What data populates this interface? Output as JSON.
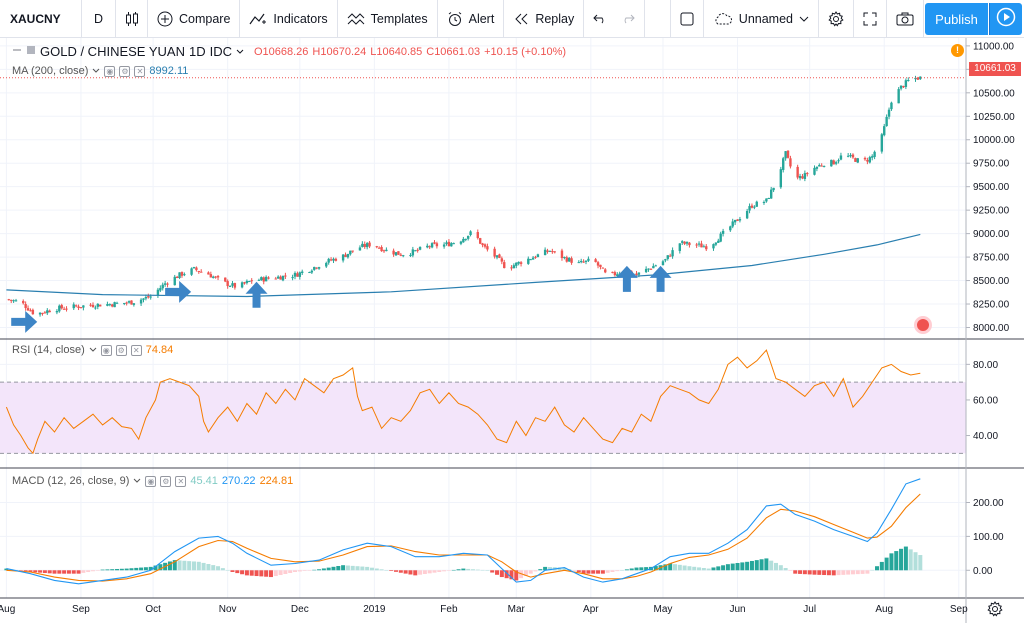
{
  "toolbar": {
    "symbol": "XAUCNY",
    "interval": "D",
    "compare_label": "Compare",
    "indicators_label": "Indicators",
    "templates_label": "Templates",
    "alert_label": "Alert",
    "replay_label": "Replay",
    "layout_name": "Unnamed",
    "publish_label": "Publish"
  },
  "main_legend": {
    "title": "GOLD / CHINESE YUAN",
    "interval": "1D",
    "source": "IDC",
    "open": "O10668.26",
    "high": "H10670.24",
    "low": "L10640.85",
    "close": "C10661.03",
    "change": "+10.15 (+0.10%)"
  },
  "ma_legend": {
    "label": "MA (200, close)",
    "value": "8992.11"
  },
  "rsi_legend": {
    "label": "RSI (14, close)",
    "value": "74.84"
  },
  "macd_legend": {
    "label": "MACD (12, 26, close, 9)",
    "hist": "45.41",
    "macd": "270.22",
    "signal": "224.81"
  },
  "price_badge": "10661.03",
  "colors": {
    "up": "#26a69a",
    "down": "#ef5350",
    "ma": "#2a7fb0",
    "rsi": "#f57c00",
    "rsi_band": "#f3e5fa",
    "macd": "#2196f3",
    "signal": "#f57c00",
    "accent": "#2196f3",
    "arrow": "#3d85c6"
  },
  "chart_data": [
    {
      "type": "candlestick",
      "title": "GOLD / CHINESE YUAN, 1D, IDC",
      "y_ticks": [
        8000,
        8250,
        8500,
        8750,
        9000,
        9250,
        9500,
        9750,
        10000,
        10250,
        10500,
        10750,
        11000
      ],
      "y_tick_labels": [
        "8000.00",
        "8250.00",
        "8500.00",
        "8750.00",
        "9000.00",
        "9250.00",
        "9500.00",
        "9750.00",
        "10000.00",
        "10250.00",
        "10500.00",
        "10750.00",
        "11000.00"
      ],
      "ylim": [
        7920,
        11020
      ],
      "x_tick_labels": [
        "Aug",
        "Sep",
        "Oct",
        "Nov",
        "Dec",
        "2019",
        "Feb",
        "Mar",
        "Apr",
        "May",
        "Jun",
        "Jul",
        "Aug",
        "Sep"
      ],
      "x_tick_days": [
        0,
        31,
        61,
        92,
        122,
        153,
        184,
        212,
        243,
        273,
        304,
        334,
        365,
        396
      ],
      "x_range_days": [
        -1,
        399
      ],
      "close_anchors": [
        [
          0,
          8300
        ],
        [
          6,
          8270
        ],
        [
          12,
          8140
        ],
        [
          20,
          8200
        ],
        [
          28,
          8220
        ],
        [
          36,
          8240
        ],
        [
          44,
          8250
        ],
        [
          52,
          8270
        ],
        [
          60,
          8330
        ],
        [
          66,
          8470
        ],
        [
          72,
          8560
        ],
        [
          78,
          8620
        ],
        [
          84,
          8570
        ],
        [
          90,
          8480
        ],
        [
          96,
          8430
        ],
        [
          102,
          8500
        ],
        [
          108,
          8520
        ],
        [
          114,
          8540
        ],
        [
          120,
          8560
        ],
        [
          126,
          8620
        ],
        [
          132,
          8690
        ],
        [
          140,
          8760
        ],
        [
          146,
          8850
        ],
        [
          152,
          8890
        ],
        [
          158,
          8820
        ],
        [
          164,
          8780
        ],
        [
          170,
          8810
        ],
        [
          176,
          8870
        ],
        [
          182,
          8880
        ],
        [
          188,
          8920
        ],
        [
          194,
          9020
        ],
        [
          198,
          8870
        ],
        [
          204,
          8740
        ],
        [
          208,
          8630
        ],
        [
          214,
          8700
        ],
        [
          220,
          8760
        ],
        [
          226,
          8820
        ],
        [
          232,
          8740
        ],
        [
          238,
          8680
        ],
        [
          244,
          8720
        ],
        [
          250,
          8540
        ],
        [
          256,
          8600
        ],
        [
          262,
          8560
        ],
        [
          268,
          8640
        ],
        [
          274,
          8720
        ],
        [
          280,
          8900
        ],
        [
          286,
          8880
        ],
        [
          292,
          8860
        ],
        [
          298,
          9000
        ],
        [
          304,
          9150
        ],
        [
          310,
          9300
        ],
        [
          316,
          9350
        ],
        [
          320,
          9550
        ],
        [
          324,
          9850
        ],
        [
          328,
          9580
        ],
        [
          332,
          9620
        ],
        [
          336,
          9700
        ],
        [
          340,
          9750
        ],
        [
          344,
          9760
        ],
        [
          348,
          9840
        ],
        [
          352,
          9800
        ],
        [
          356,
          9760
        ],
        [
          360,
          9820
        ],
        [
          364,
          10030
        ],
        [
          368,
          10420
        ],
        [
          372,
          10560
        ],
        [
          376,
          10650
        ],
        [
          380,
          10661
        ]
      ],
      "series": [
        {
          "name": "MA (200, close)",
          "points": [
            [
              0,
              8400
            ],
            [
              40,
              8350
            ],
            [
              100,
              8330
            ],
            [
              160,
              8380
            ],
            [
              220,
              8480
            ],
            [
              270,
              8560
            ],
            [
              310,
              8660
            ],
            [
              340,
              8780
            ],
            [
              362,
              8880
            ],
            [
              380,
              8992
            ]
          ]
        }
      ]
    },
    {
      "type": "line",
      "title": "RSI (14, close)",
      "y_ticks": [
        40,
        60,
        80
      ],
      "y_tick_labels": [
        "40.00",
        "60.00",
        "80.00"
      ],
      "ylim": [
        24,
        92
      ],
      "band": [
        30,
        70
      ],
      "points": [
        [
          0,
          56
        ],
        [
          3,
          46
        ],
        [
          6,
          40
        ],
        [
          9,
          33
        ],
        [
          11,
          30
        ],
        [
          13,
          38
        ],
        [
          16,
          48
        ],
        [
          20,
          42
        ],
        [
          24,
          50
        ],
        [
          28,
          44
        ],
        [
          32,
          48
        ],
        [
          36,
          52
        ],
        [
          40,
          46
        ],
        [
          44,
          50
        ],
        [
          48,
          45
        ],
        [
          52,
          44
        ],
        [
          55,
          38
        ],
        [
          58,
          50
        ],
        [
          62,
          60
        ],
        [
          64,
          70
        ],
        [
          68,
          72
        ],
        [
          72,
          70
        ],
        [
          76,
          68
        ],
        [
          80,
          62
        ],
        [
          82,
          48
        ],
        [
          84,
          42
        ],
        [
          88,
          50
        ],
        [
          92,
          56
        ],
        [
          96,
          48
        ],
        [
          100,
          58
        ],
        [
          104,
          52
        ],
        [
          108,
          64
        ],
        [
          112,
          58
        ],
        [
          116,
          66
        ],
        [
          120,
          60
        ],
        [
          124,
          72
        ],
        [
          128,
          68
        ],
        [
          132,
          64
        ],
        [
          136,
          72
        ],
        [
          140,
          74
        ],
        [
          144,
          78
        ],
        [
          146,
          62
        ],
        [
          148,
          54
        ],
        [
          152,
          56
        ],
        [
          156,
          44
        ],
        [
          160,
          50
        ],
        [
          164,
          48
        ],
        [
          168,
          54
        ],
        [
          172,
          64
        ],
        [
          176,
          66
        ],
        [
          180,
          58
        ],
        [
          184,
          64
        ],
        [
          188,
          58
        ],
        [
          192,
          56
        ],
        [
          196,
          52
        ],
        [
          200,
          46
        ],
        [
          204,
          38
        ],
        [
          208,
          36
        ],
        [
          212,
          48
        ],
        [
          216,
          40
        ],
        [
          220,
          50
        ],
        [
          224,
          48
        ],
        [
          228,
          56
        ],
        [
          232,
          46
        ],
        [
          236,
          42
        ],
        [
          240,
          50
        ],
        [
          244,
          44
        ],
        [
          248,
          38
        ],
        [
          252,
          36
        ],
        [
          256,
          44
        ],
        [
          260,
          42
        ],
        [
          264,
          52
        ],
        [
          268,
          48
        ],
        [
          272,
          62
        ],
        [
          276,
          68
        ],
        [
          280,
          66
        ],
        [
          284,
          64
        ],
        [
          288,
          60
        ],
        [
          292,
          58
        ],
        [
          296,
          66
        ],
        [
          300,
          80
        ],
        [
          304,
          84
        ],
        [
          308,
          78
        ],
        [
          312,
          82
        ],
        [
          316,
          88
        ],
        [
          320,
          72
        ],
        [
          324,
          70
        ],
        [
          328,
          66
        ],
        [
          332,
          62
        ],
        [
          336,
          68
        ],
        [
          340,
          70
        ],
        [
          344,
          62
        ],
        [
          348,
          72
        ],
        [
          352,
          56
        ],
        [
          356,
          62
        ],
        [
          360,
          70
        ],
        [
          364,
          78
        ],
        [
          368,
          80
        ],
        [
          372,
          76
        ],
        [
          376,
          74
        ],
        [
          380,
          75
        ]
      ]
    },
    {
      "type": "line",
      "title": "MACD (12, 26, close, 9)",
      "y_ticks": [
        0,
        100,
        200
      ],
      "y_tick_labels": [
        "0.00",
        "100.00",
        "200.00"
      ],
      "ylim": [
        -70,
        290
      ],
      "series": [
        {
          "name": "MACD",
          "points": [
            [
              0,
              5
            ],
            [
              10,
              -10
            ],
            [
              20,
              -30
            ],
            [
              30,
              -40
            ],
            [
              40,
              -30
            ],
            [
              50,
              -20
            ],
            [
              60,
              0
            ],
            [
              70,
              55
            ],
            [
              80,
              95
            ],
            [
              88,
              100
            ],
            [
              94,
              80
            ],
            [
              100,
              50
            ],
            [
              110,
              15
            ],
            [
              120,
              20
            ],
            [
              130,
              30
            ],
            [
              140,
              60
            ],
            [
              150,
              80
            ],
            [
              160,
              70
            ],
            [
              170,
              40
            ],
            [
              180,
              40
            ],
            [
              190,
              50
            ],
            [
              200,
              45
            ],
            [
              206,
              5
            ],
            [
              212,
              -35
            ],
            [
              218,
              -30
            ],
            [
              224,
              0
            ],
            [
              232,
              8
            ],
            [
              240,
              -20
            ],
            [
              248,
              -35
            ],
            [
              256,
              -25
            ],
            [
              262,
              -10
            ],
            [
              268,
              5
            ],
            [
              276,
              40
            ],
            [
              284,
              50
            ],
            [
              292,
              50
            ],
            [
              300,
              80
            ],
            [
              308,
              120
            ],
            [
              316,
              190
            ],
            [
              322,
              195
            ],
            [
              328,
              165
            ],
            [
              336,
              145
            ],
            [
              344,
              120
            ],
            [
              352,
              100
            ],
            [
              358,
              85
            ],
            [
              362,
              110
            ],
            [
              368,
              180
            ],
            [
              374,
              255
            ],
            [
              380,
              270
            ]
          ]
        },
        {
          "name": "Signal",
          "points": [
            [
              0,
              0
            ],
            [
              10,
              -5
            ],
            [
              20,
              -20
            ],
            [
              30,
              -30
            ],
            [
              40,
              -32
            ],
            [
              50,
              -25
            ],
            [
              60,
              -10
            ],
            [
              70,
              25
            ],
            [
              80,
              70
            ],
            [
              88,
              88
            ],
            [
              94,
              85
            ],
            [
              100,
              65
            ],
            [
              110,
              35
            ],
            [
              120,
              25
            ],
            [
              130,
              27
            ],
            [
              140,
              45
            ],
            [
              150,
              70
            ],
            [
              160,
              72
            ],
            [
              170,
              55
            ],
            [
              180,
              45
            ],
            [
              190,
              45
            ],
            [
              200,
              45
            ],
            [
              206,
              25
            ],
            [
              212,
              -5
            ],
            [
              218,
              -20
            ],
            [
              224,
              -10
            ],
            [
              232,
              0
            ],
            [
              240,
              -10
            ],
            [
              248,
              -25
            ],
            [
              256,
              -25
            ],
            [
              262,
              -18
            ],
            [
              268,
              -5
            ],
            [
              276,
              20
            ],
            [
              284,
              38
            ],
            [
              292,
              45
            ],
            [
              300,
              62
            ],
            [
              308,
              95
            ],
            [
              316,
              155
            ],
            [
              322,
              180
            ],
            [
              328,
              175
            ],
            [
              336,
              158
            ],
            [
              344,
              135
            ],
            [
              352,
              112
            ],
            [
              358,
              95
            ],
            [
              362,
              98
            ],
            [
              368,
              130
            ],
            [
              374,
              185
            ],
            [
              380,
              225
            ]
          ]
        }
      ]
    }
  ],
  "annotations": [
    {
      "type": "arrow-right",
      "day": 2,
      "value": 8060
    },
    {
      "type": "arrow-right",
      "day": 66,
      "value": 8380
    },
    {
      "type": "arrow-up",
      "day": 104,
      "value": 8210
    },
    {
      "type": "arrow-up",
      "day": 258,
      "value": 8380
    },
    {
      "type": "arrow-up",
      "day": 272,
      "value": 8380
    }
  ]
}
